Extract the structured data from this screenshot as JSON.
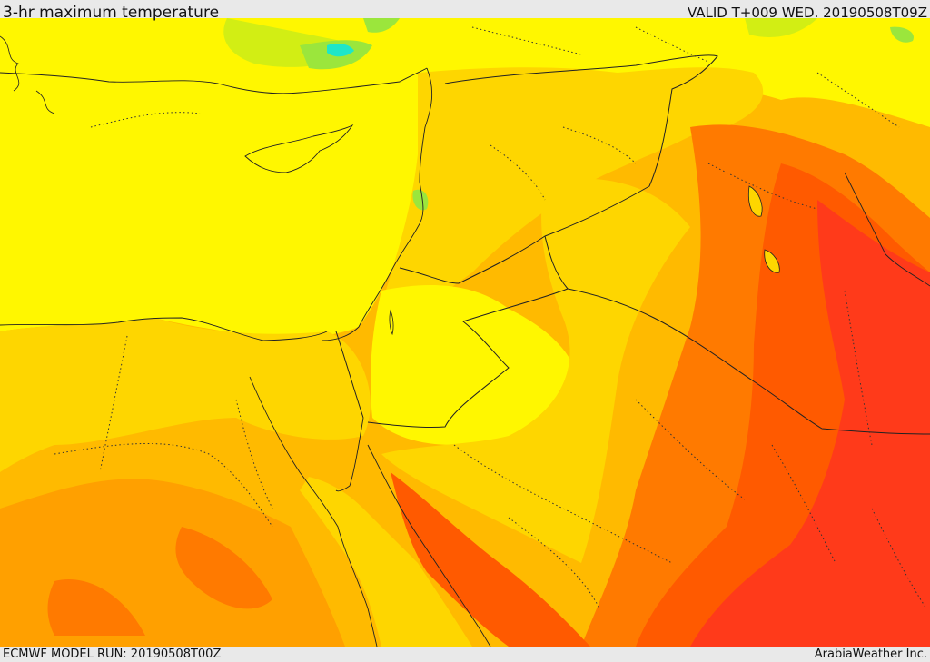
{
  "header": {
    "title": "3-hr maximum temperature",
    "valid": "VALID T+009 WED. 20190508T09Z"
  },
  "footer": {
    "model_run": "ECMWF MODEL RUN: 20190508T00Z",
    "brand": "ArabiaWeather Inc."
  },
  "map": {
    "colors": {
      "green": "#30d830",
      "light_green": "#9be63c",
      "yellow_green": "#d2ee14",
      "yellow": "#fff700",
      "gold": "#fed600",
      "orange_yellow": "#ffba00",
      "orange": "#ffa000",
      "dark_orange": "#ff7a00",
      "red_orange": "#ff5a00",
      "red": "#ff3a1a",
      "cyan": "#1ee6c8"
    }
  }
}
